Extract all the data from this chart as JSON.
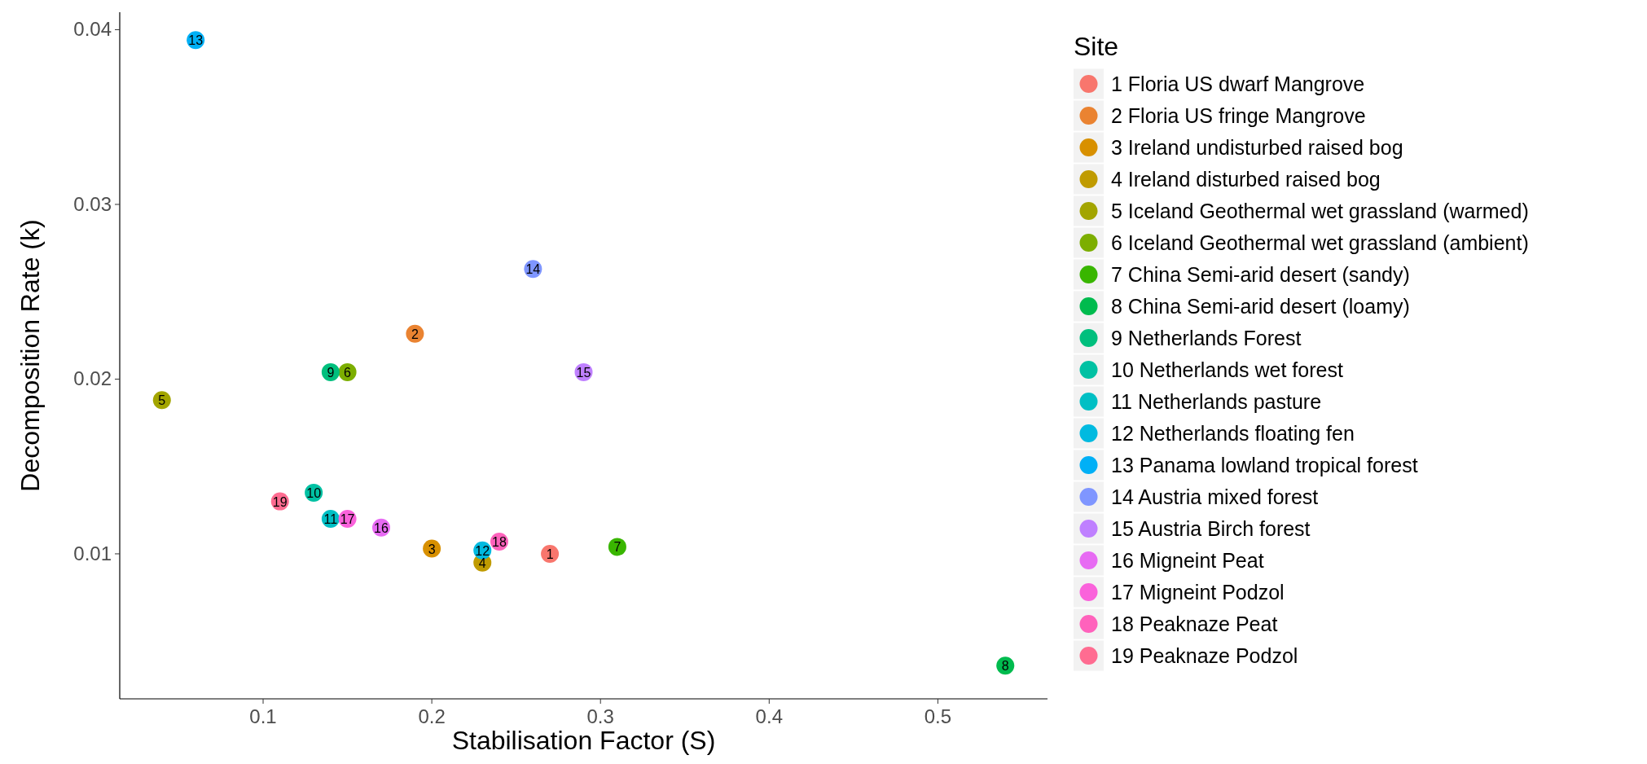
{
  "chart_data": {
    "type": "scatter",
    "xlabel": "Stabilisation Factor (S)",
    "ylabel": "Decomposition Rate (k)",
    "legend_title": "Site",
    "legend": "right",
    "marker": "circle",
    "grid": false,
    "xlim": [
      0.015,
      0.565
    ],
    "xticks": [
      0.1,
      0.2,
      0.3,
      0.4,
      0.5
    ],
    "ylim": [
      0.0017,
      0.041
    ],
    "yticks": [
      0.01,
      0.02,
      0.03,
      0.04
    ],
    "series": [
      {
        "name": "1 Floria US dwarf Mangrove",
        "color": "#f8766d",
        "x": [
          0.27
        ],
        "values": [
          0.01
        ]
      },
      {
        "name": "2 Floria US fringe Mangrove",
        "color": "#ea8331",
        "x": [
          0.19
        ],
        "values": [
          0.0226
        ]
      },
      {
        "name": "3 Ireland undisturbed raised bog",
        "color": "#d89000",
        "x": [
          0.2
        ],
        "values": [
          0.0103
        ]
      },
      {
        "name": "4 Ireland disturbed raised bog",
        "color": "#c09b00",
        "x": [
          0.23
        ],
        "values": [
          0.0095
        ]
      },
      {
        "name": "5 Iceland Geothermal wet grassland (warmed)",
        "color": "#a3a500",
        "x": [
          0.04
        ],
        "values": [
          0.0188
        ]
      },
      {
        "name": "6 Iceland Geothermal wet grassland (ambient)",
        "color": "#7cae00",
        "x": [
          0.15
        ],
        "values": [
          0.0204
        ]
      },
      {
        "name": "7 China Semi-arid desert (sandy)",
        "color": "#39b600",
        "x": [
          0.31
        ],
        "values": [
          0.0104
        ]
      },
      {
        "name": "8 China Semi-arid desert (loamy)",
        "color": "#00bb4e",
        "x": [
          0.54
        ],
        "values": [
          0.0036
        ]
      },
      {
        "name": "9 Netherlands Forest",
        "color": "#00bf7d",
        "x": [
          0.14
        ],
        "values": [
          0.0204
        ]
      },
      {
        "name": "10 Netherlands wet forest",
        "color": "#00c1a3",
        "x": [
          0.13
        ],
        "values": [
          0.0135
        ]
      },
      {
        "name": "11 Netherlands pasture",
        "color": "#00bfc4",
        "x": [
          0.14
        ],
        "values": [
          0.012
        ]
      },
      {
        "name": "12 Netherlands floating fen",
        "color": "#00bae0",
        "x": [
          0.23
        ],
        "values": [
          0.0102
        ]
      },
      {
        "name": "13 Panama lowland tropical forest",
        "color": "#00b0f6",
        "x": [
          0.06
        ],
        "values": [
          0.0394
        ]
      },
      {
        "name": "14 Austria mixed forest",
        "color": "#7f96ff",
        "x": [
          0.26
        ],
        "values": [
          0.0263
        ]
      },
      {
        "name": "15 Austria Birch forest",
        "color": "#bf80ff",
        "x": [
          0.29
        ],
        "values": [
          0.0204
        ]
      },
      {
        "name": "16 Migneint Peat",
        "color": "#e76bf3",
        "x": [
          0.17
        ],
        "values": [
          0.0115
        ]
      },
      {
        "name": "17 Migneint Podzol",
        "color": "#fa62db",
        "x": [
          0.15
        ],
        "values": [
          0.012
        ]
      },
      {
        "name": "18 Peaknaze Peat",
        "color": "#ff62bc",
        "x": [
          0.24
        ],
        "values": [
          0.0107
        ]
      },
      {
        "name": "19 Peaknaze Podzol",
        "color": "#ff6c91",
        "x": [
          0.11
        ],
        "values": [
          0.013
        ]
      }
    ],
    "annotations": [
      {
        "text": "1",
        "x": 0.27,
        "y": 0.01
      },
      {
        "text": "2",
        "x": 0.19,
        "y": 0.0226
      },
      {
        "text": "3",
        "x": 0.2,
        "y": 0.0103
      },
      {
        "text": "4",
        "x": 0.23,
        "y": 0.0095
      },
      {
        "text": "5",
        "x": 0.04,
        "y": 0.0188
      },
      {
        "text": "6",
        "x": 0.15,
        "y": 0.0204
      },
      {
        "text": "7",
        "x": 0.31,
        "y": 0.0104
      },
      {
        "text": "8",
        "x": 0.54,
        "y": 0.0036
      },
      {
        "text": "9",
        "x": 0.14,
        "y": 0.0204
      },
      {
        "text": "10",
        "x": 0.13,
        "y": 0.0135
      },
      {
        "text": "11",
        "x": 0.14,
        "y": 0.012
      },
      {
        "text": "12",
        "x": 0.23,
        "y": 0.0102
      },
      {
        "text": "13",
        "x": 0.06,
        "y": 0.0394
      },
      {
        "text": "14",
        "x": 0.26,
        "y": 0.0263
      },
      {
        "text": "15",
        "x": 0.29,
        "y": 0.0204
      },
      {
        "text": "16",
        "x": 0.17,
        "y": 0.0115
      },
      {
        "text": "17",
        "x": 0.15,
        "y": 0.012
      },
      {
        "text": "18",
        "x": 0.24,
        "y": 0.0107
      },
      {
        "text": "19",
        "x": 0.11,
        "y": 0.013
      }
    ]
  }
}
